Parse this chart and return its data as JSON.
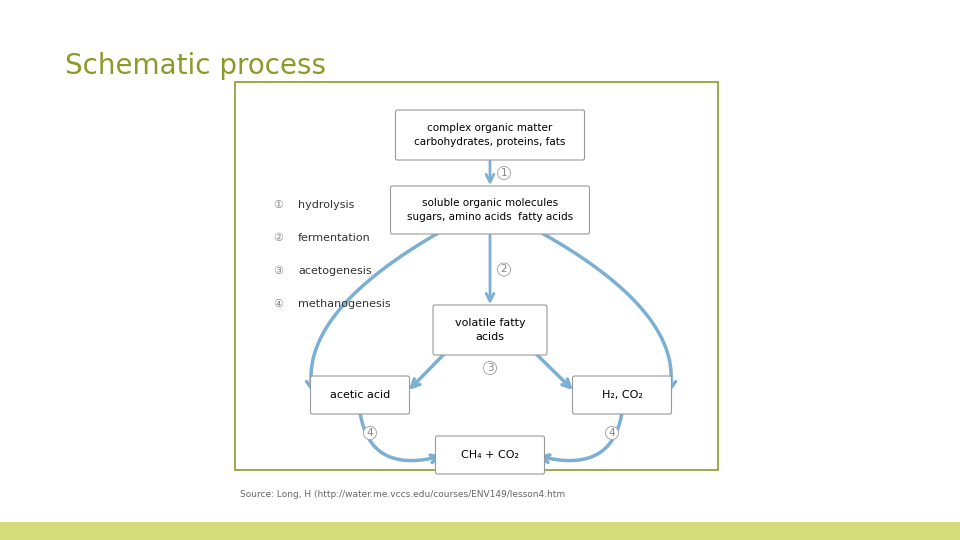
{
  "title": "Schematic process",
  "title_color": "#8B9B2A",
  "title_fontsize": 20,
  "background_color": "#ffffff",
  "box_border_color": "#999999",
  "diagram_border_color": "#8B9B2A",
  "arrow_color": "#7BAFD4",
  "source_text": "Source: Long, H (http://water.me.vccs.edu/courses/ENV149/lesson4.htm",
  "legend_items": [
    {
      "num": "1",
      "label": "hydrolysis"
    },
    {
      "num": "2",
      "label": "fermentation"
    },
    {
      "num": "3",
      "label": "acetogenesis"
    },
    {
      "num": "4",
      "label": "methanogenesis"
    }
  ]
}
